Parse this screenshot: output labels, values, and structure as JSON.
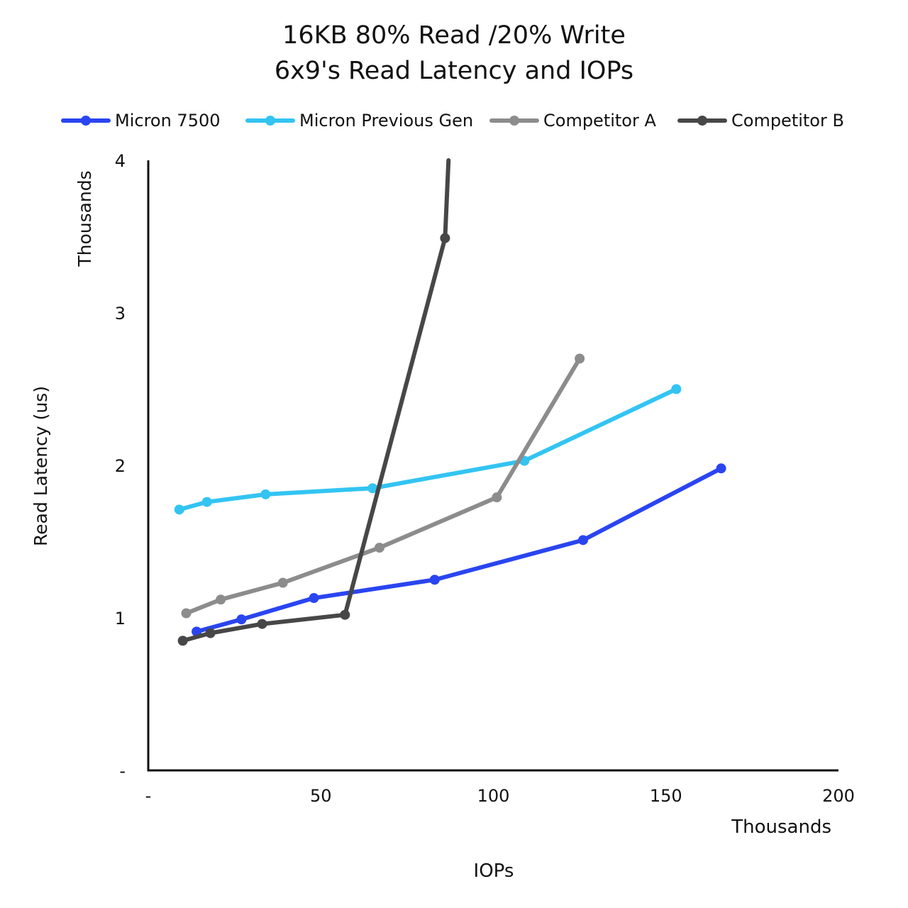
{
  "chart_data": {
    "type": "line",
    "title": [
      "16KB 80% Read /20% Write",
      "6x9's Read Latency and IOPs"
    ],
    "xlabel": "IOPs",
    "ylabel": "Read Latency (us)",
    "x_units_label": "Thousands",
    "y_units_label": "Thousands",
    "xlim": [
      0,
      200
    ],
    "ylim": [
      0,
      4
    ],
    "x_ticks": [
      0,
      50,
      100,
      150,
      200
    ],
    "x_tick_labels": [
      "-",
      "50",
      "100",
      "150",
      "200"
    ],
    "y_ticks": [
      0,
      1,
      2,
      3,
      4
    ],
    "y_tick_labels": [
      "-",
      "1",
      "2",
      "3",
      "4"
    ],
    "legend_position": "top",
    "series": [
      {
        "name": "Micron 7500",
        "color": "#2a45f0",
        "points": [
          [
            14,
            0.91
          ],
          [
            27,
            0.99
          ],
          [
            48,
            1.13
          ],
          [
            83,
            1.25
          ],
          [
            126,
            1.51
          ],
          [
            166,
            1.98
          ]
        ]
      },
      {
        "name": "Micron Previous Gen",
        "color": "#33c4f2",
        "points": [
          [
            9,
            1.71
          ],
          [
            17,
            1.76
          ],
          [
            34,
            1.81
          ],
          [
            65,
            1.85
          ],
          [
            109,
            2.03
          ],
          [
            153,
            2.5
          ]
        ]
      },
      {
        "name": "Competitor A",
        "color": "#8c8c8c",
        "points": [
          [
            11,
            1.03
          ],
          [
            21,
            1.12
          ],
          [
            39,
            1.23
          ],
          [
            67,
            1.46
          ],
          [
            101,
            1.79
          ],
          [
            125,
            2.7
          ]
        ]
      },
      {
        "name": "Competitor B",
        "color": "#474747",
        "points": [
          [
            10,
            0.85
          ],
          [
            18,
            0.9
          ],
          [
            33,
            0.96
          ],
          [
            57,
            1.02
          ],
          [
            86,
            3.49
          ],
          [
            87,
            4.0
          ]
        ],
        "marker_count": 5
      }
    ]
  }
}
